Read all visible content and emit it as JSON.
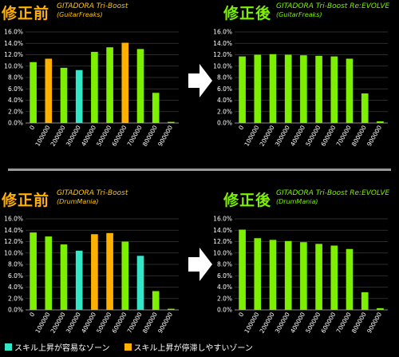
{
  "colors": {
    "easy": "#33e6c8",
    "hard": "#ffb000",
    "normal": "#7cf000"
  },
  "panels": [
    {
      "label": "修正前",
      "title": "GITADORA Tri-Boost",
      "subtitle": "(GuitarFreaks)"
    },
    {
      "label": "修正後",
      "title": "GITADORA Tri-Boost Re:EVOLVE",
      "subtitle": "(GuitarFreaks)"
    },
    {
      "label": "修正前",
      "title": "GITADORA Tri-Boost",
      "subtitle": "(DrumMania)"
    },
    {
      "label": "修正後",
      "title": "GITADORA Tri-Boost Re:EVOLVE",
      "subtitle": "(DrumMania)"
    }
  ],
  "legend": {
    "easy": "スキル上昇が容易なゾーン",
    "hard": "スキル上昇が停滞しやすいゾーン"
  },
  "chart_data": [
    {
      "type": "bar",
      "categories": [
        "0",
        "100000",
        "200000",
        "300000",
        "400000",
        "500000",
        "600000",
        "700000",
        "800000",
        "900000"
      ],
      "values": [
        10.7,
        11.3,
        9.7,
        9.3,
        12.5,
        13.3,
        14.1,
        13.0,
        5.3,
        0.2
      ],
      "zones": [
        "normal",
        "hard",
        "normal",
        "easy",
        "normal",
        "normal",
        "hard",
        "normal",
        "normal",
        "normal"
      ],
      "ylim": [
        0,
        16
      ],
      "yticks": [
        "0.0%",
        "2.0%",
        "4.0%",
        "6.0%",
        "8.0%",
        "10.0%",
        "12.0%",
        "14.0%",
        "16.0%"
      ]
    },
    {
      "type": "bar",
      "categories": [
        "0",
        "100000",
        "200000",
        "300000",
        "400000",
        "500000",
        "600000",
        "700000",
        "800000",
        "900000"
      ],
      "values": [
        11.7,
        12.0,
        12.1,
        12.0,
        11.9,
        11.8,
        11.7,
        11.3,
        5.2,
        0.3
      ],
      "zones": [
        "normal",
        "normal",
        "normal",
        "normal",
        "normal",
        "normal",
        "normal",
        "normal",
        "normal",
        "normal"
      ],
      "ylim": [
        0,
        16
      ],
      "yticks": [
        "0.0%",
        "2.0%",
        "4.0%",
        "6.0%",
        "8.0%",
        "10.0%",
        "12.0%",
        "14.0%",
        "16.0%"
      ]
    },
    {
      "type": "bar",
      "categories": [
        "0",
        "100000",
        "200000",
        "300000",
        "400000",
        "500000",
        "600000",
        "700000",
        "800000",
        "900000"
      ],
      "values": [
        13.6,
        12.9,
        11.5,
        10.4,
        13.3,
        13.5,
        12.0,
        9.5,
        3.3,
        0.2
      ],
      "zones": [
        "normal",
        "normal",
        "normal",
        "easy",
        "hard",
        "hard",
        "normal",
        "easy",
        "normal",
        "normal"
      ],
      "ylim": [
        0,
        16
      ],
      "yticks": [
        "0.0%",
        "2.0%",
        "4.0%",
        "6.0%",
        "8.0%",
        "10.0%",
        "12.0%",
        "14.0%",
        "16.0%"
      ]
    },
    {
      "type": "bar",
      "categories": [
        "0",
        "100000",
        "200000",
        "300000",
        "400000",
        "500000",
        "600000",
        "700000",
        "800000",
        "900000"
      ],
      "values": [
        14.1,
        12.6,
        12.3,
        12.1,
        11.9,
        11.6,
        11.3,
        10.7,
        3.1,
        0.3
      ],
      "zones": [
        "normal",
        "normal",
        "normal",
        "normal",
        "normal",
        "normal",
        "normal",
        "normal",
        "normal",
        "normal"
      ],
      "ylim": [
        0,
        16
      ],
      "yticks": [
        "0.0%",
        "2.0%",
        "4.0%",
        "6.0%",
        "8.0%",
        "10.0%",
        "12.0%",
        "14.0%",
        "16.0%"
      ]
    }
  ]
}
